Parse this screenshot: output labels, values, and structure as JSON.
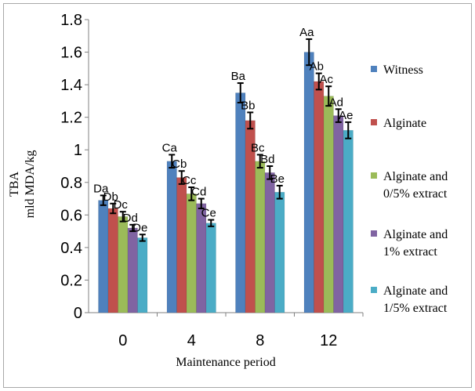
{
  "chart_data": {
    "type": "bar",
    "title": "",
    "ylabel_lines": [
      "TBA",
      "mld MDA/kg"
    ],
    "xlabel": "Maintenance period",
    "ylim": [
      0,
      1.8
    ],
    "yticks": [
      "0",
      "0.2",
      "0.4",
      "0.6",
      "0.8",
      "1",
      "1.2",
      "1.4",
      "1.6",
      "1.8"
    ],
    "categories": [
      "0",
      "4",
      "8",
      "12"
    ],
    "legend_position": "right",
    "series": [
      {
        "name_lines": [
          "Witness"
        ],
        "color": "#4f81bd",
        "values": [
          0.69,
          0.93,
          1.35,
          1.6
        ],
        "errors": [
          0.03,
          0.04,
          0.06,
          0.08
        ],
        "labels": [
          "Da",
          "Ca",
          "Ba",
          "Aa"
        ]
      },
      {
        "name_lines": [
          "Alginate"
        ],
        "color": "#c0504d",
        "values": [
          0.64,
          0.83,
          1.18,
          1.42
        ],
        "errors": [
          0.03,
          0.04,
          0.05,
          0.05
        ],
        "labels": [
          "Db",
          "Cb",
          "Bb",
          "Ab"
        ]
      },
      {
        "name_lines": [
          "Alginate and",
          "0/5% extract"
        ],
        "color": "#9bbb59",
        "values": [
          0.59,
          0.73,
          0.93,
          1.33
        ],
        "errors": [
          0.03,
          0.04,
          0.04,
          0.06
        ],
        "labels": [
          "Dc",
          "Cc",
          "Bc",
          "Ac"
        ]
      },
      {
        "name_lines": [
          "Alginate and",
          "1% extract"
        ],
        "color": "#8064a2",
        "values": [
          0.52,
          0.67,
          0.86,
          1.21
        ],
        "errors": [
          0.02,
          0.03,
          0.04,
          0.04
        ],
        "labels": [
          "Dd",
          "Cd",
          "Bd",
          "Ad"
        ]
      },
      {
        "name_lines": [
          "Alginate and",
          "1/5% extract"
        ],
        "color": "#4bacc6",
        "values": [
          0.46,
          0.55,
          0.74,
          1.12
        ],
        "errors": [
          0.02,
          0.02,
          0.04,
          0.05
        ],
        "labels": [
          "De",
          "Ce",
          "Be",
          "Ae"
        ]
      }
    ]
  }
}
